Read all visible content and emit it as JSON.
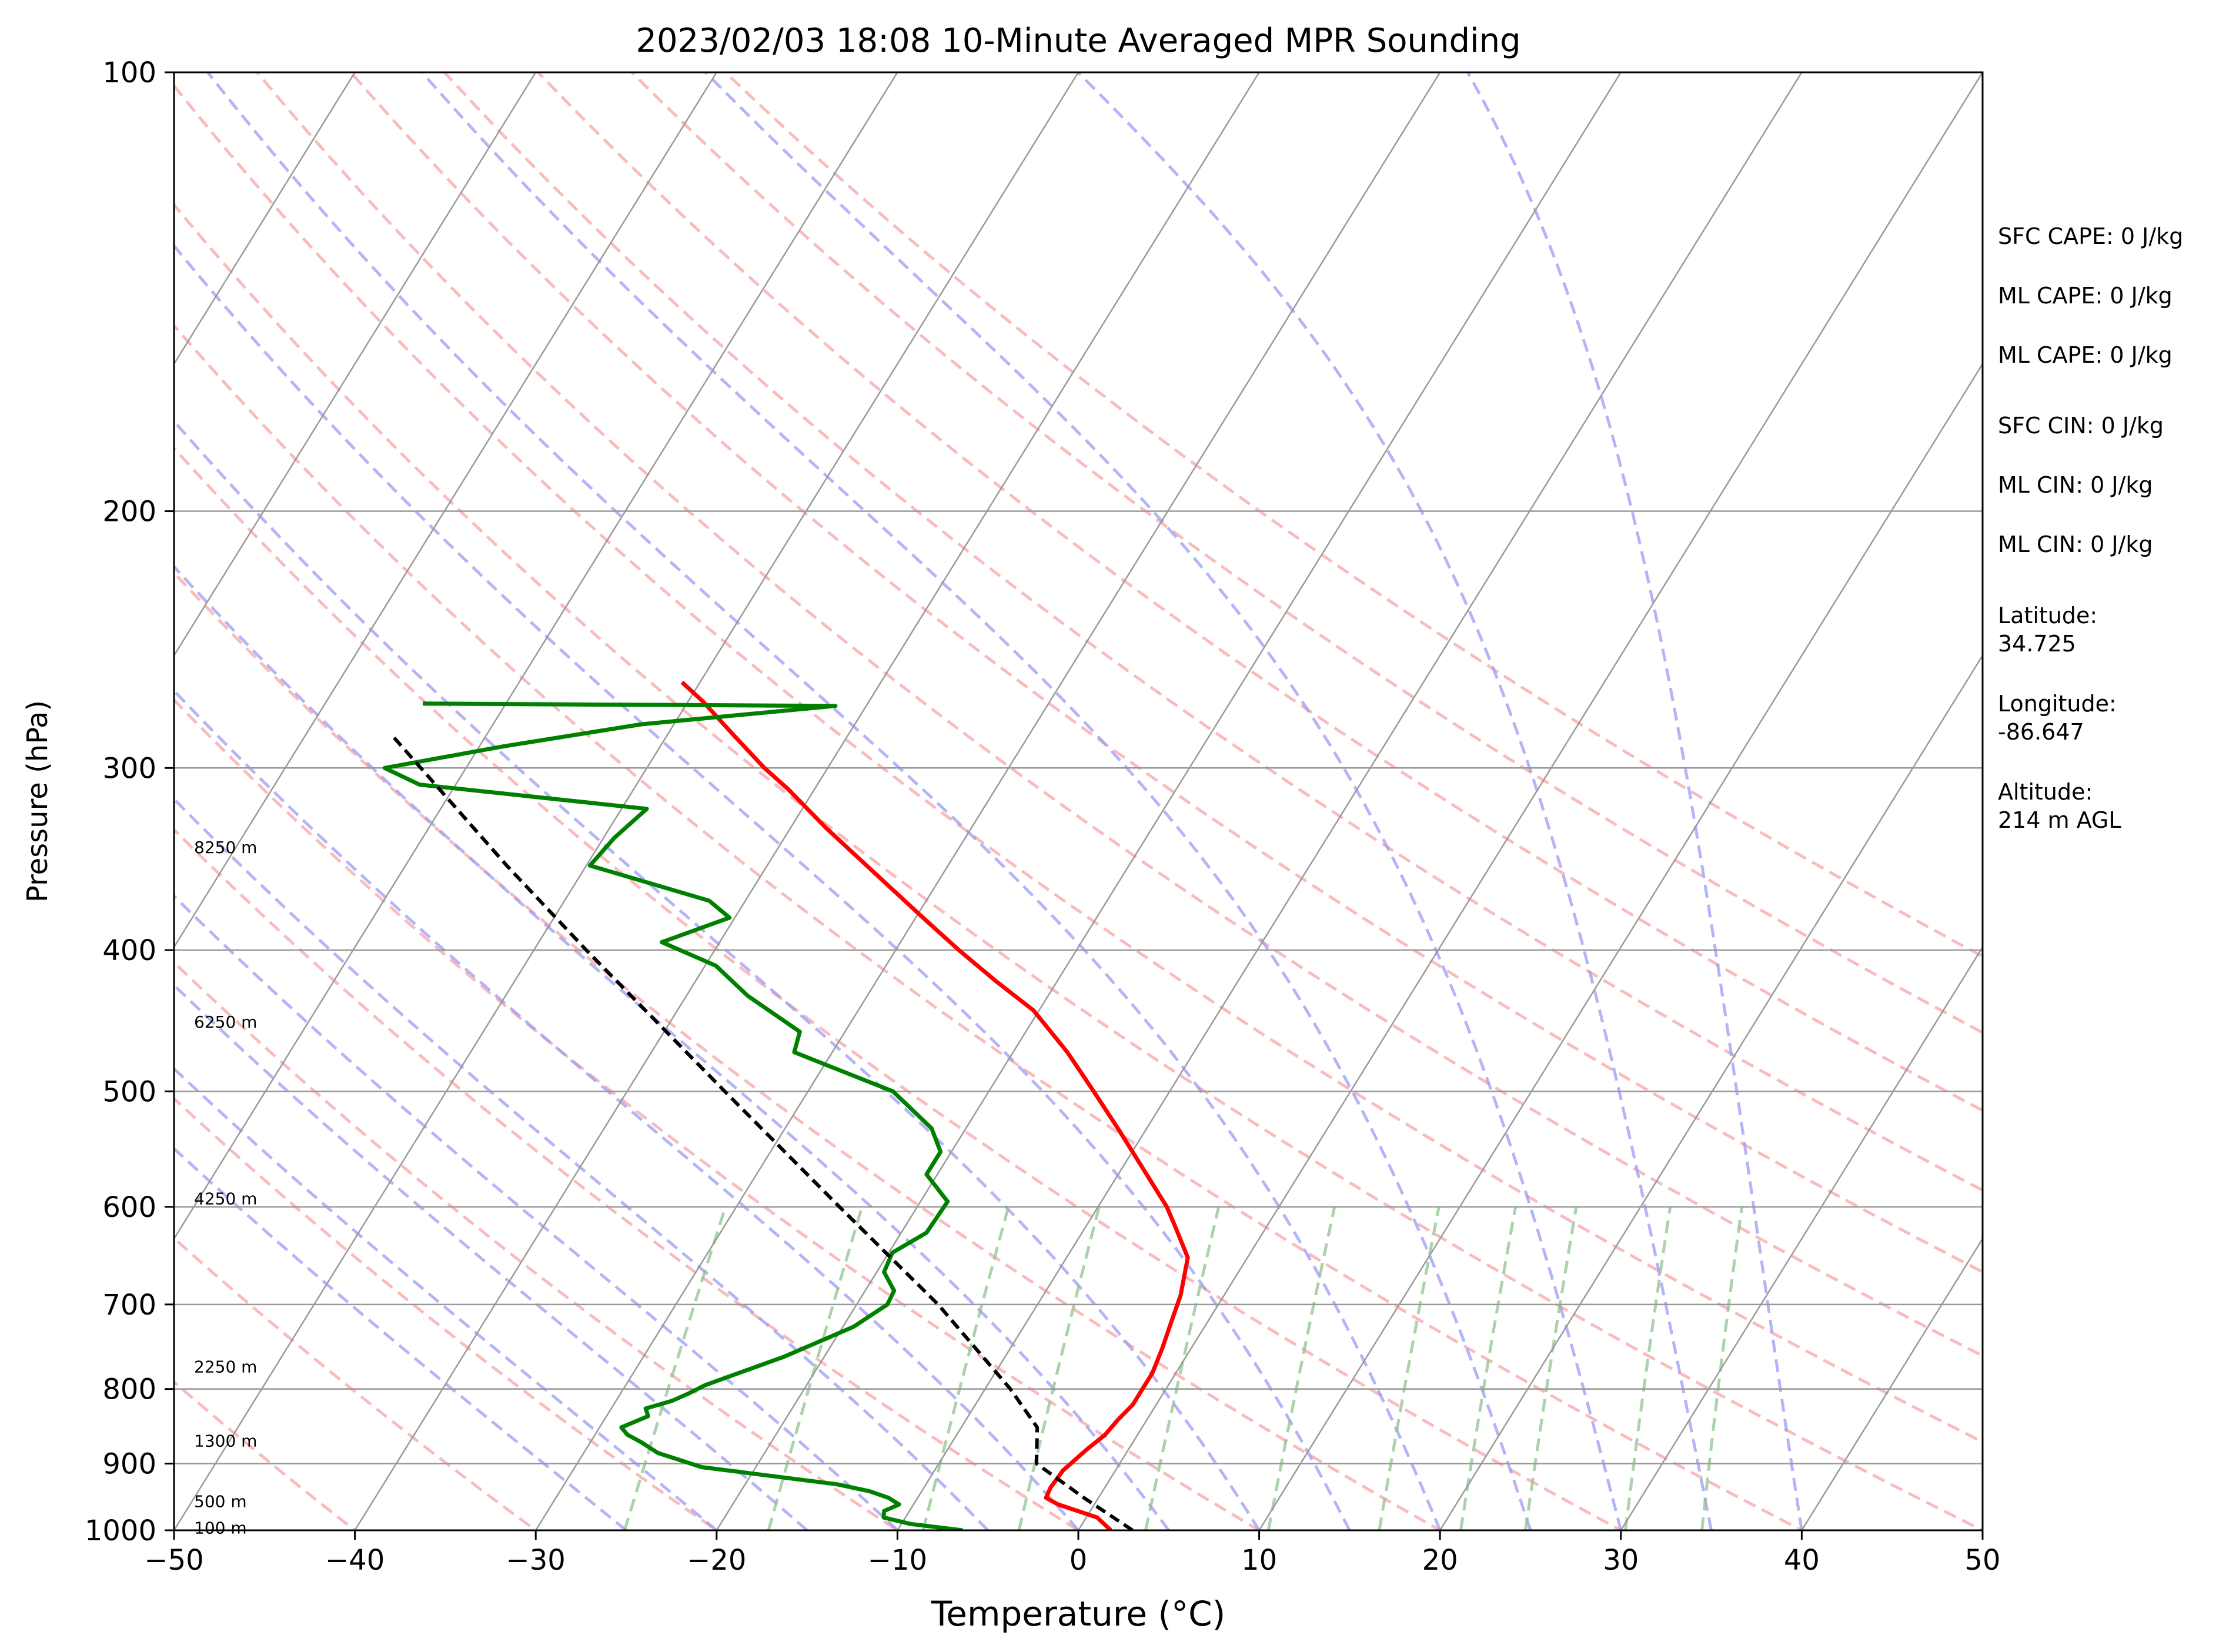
{
  "chart_data": {
    "type": "line",
    "title": "2023/02/03 18:08 10-Minute Averaged MPR Sounding",
    "xlabel": "Temperature (°C)",
    "ylabel": "Pressure (hPa)",
    "xlim": [
      -50,
      50
    ],
    "ylim": [
      1000,
      100
    ],
    "y_scale": "log",
    "skew_t": true,
    "x_ticks": [
      -50,
      -40,
      -30,
      -20,
      -10,
      0,
      10,
      20,
      30,
      40,
      50
    ],
    "x_tick_labels": [
      "−50",
      "−40",
      "−30",
      "−20",
      "−10",
      "0",
      "10",
      "20",
      "30",
      "40",
      "50"
    ],
    "y_ticks": [
      1000,
      900,
      800,
      700,
      600,
      500,
      400,
      300,
      200,
      100
    ],
    "y_tick_labels": [
      "1000",
      "900",
      "800",
      "700",
      "600",
      "500",
      "400",
      "300",
      "200",
      "100"
    ],
    "grid": true,
    "background_lines": {
      "isotherms_c": [
        -120,
        -110,
        -100,
        -90,
        -80,
        -70,
        -60,
        -50,
        -40,
        -30,
        -20,
        -10,
        0,
        10,
        20,
        30,
        40,
        50
      ],
      "dry_adiabats_c": [
        -50,
        -40,
        -30,
        -20,
        -10,
        0,
        10,
        20,
        30,
        40,
        50,
        60,
        70,
        80,
        90,
        100,
        110,
        120
      ],
      "moist_adiabats_c": [
        -25,
        -20,
        -15,
        -10,
        -5,
        0,
        5,
        10,
        15,
        20,
        25,
        30,
        35,
        40
      ],
      "mixing_ratios_gkg": [
        0.5,
        1,
        2,
        3,
        5,
        8,
        12,
        16,
        20,
        28,
        36
      ],
      "colors": {
        "isotherm": "#999999",
        "dry_adiabat": "#f7a4a4",
        "moist_adiabat": "#9b9bf5",
        "mixing_ratio": "#8fc48f"
      }
    },
    "series": [
      {
        "role": "temperature",
        "color": "#ff0000",
        "points": [
          [
            1000,
            1.8
          ],
          [
            980,
            0.6
          ],
          [
            960,
            -2.0
          ],
          [
            950,
            -2.9
          ],
          [
            935,
            -3.0
          ],
          [
            910,
            -2.9
          ],
          [
            880,
            -2.3
          ],
          [
            860,
            -1.8
          ],
          [
            840,
            -1.6
          ],
          [
            820,
            -1.3
          ],
          [
            800,
            -1.3
          ],
          [
            780,
            -1.3
          ],
          [
            750,
            -1.6
          ],
          [
            720,
            -2.0
          ],
          [
            690,
            -2.4
          ],
          [
            650,
            -3.3
          ],
          [
            620,
            -5.0
          ],
          [
            600,
            -6.2
          ],
          [
            560,
            -9.2
          ],
          [
            530,
            -11.6
          ],
          [
            500,
            -14.2
          ],
          [
            470,
            -17.0
          ],
          [
            440,
            -20.3
          ],
          [
            420,
            -23.4
          ],
          [
            400,
            -26.5
          ],
          [
            380,
            -29.6
          ],
          [
            350,
            -34.5
          ],
          [
            330,
            -38.0
          ],
          [
            310,
            -41.5
          ],
          [
            300,
            -43.5
          ],
          [
            285,
            -46.3
          ],
          [
            270,
            -49.2
          ],
          [
            262,
            -51.0
          ]
        ]
      },
      {
        "role": "dewpoint",
        "color": "#008000",
        "points": [
          [
            1000,
            -6.4
          ],
          [
            990,
            -9.5
          ],
          [
            980,
            -11.2
          ],
          [
            970,
            -11.4
          ],
          [
            960,
            -10.8
          ],
          [
            950,
            -11.6
          ],
          [
            940,
            -12.9
          ],
          [
            930,
            -14.9
          ],
          [
            905,
            -23.0
          ],
          [
            885,
            -25.9
          ],
          [
            870,
            -27.2
          ],
          [
            860,
            -28.2
          ],
          [
            850,
            -28.8
          ],
          [
            835,
            -27.7
          ],
          [
            825,
            -28.1
          ],
          [
            815,
            -26.9
          ],
          [
            805,
            -26.2
          ],
          [
            795,
            -25.6
          ],
          [
            760,
            -22.2
          ],
          [
            725,
            -19.4
          ],
          [
            700,
            -18.3
          ],
          [
            685,
            -18.4
          ],
          [
            665,
            -19.6
          ],
          [
            645,
            -19.8
          ],
          [
            625,
            -18.6
          ],
          [
            595,
            -18.5
          ],
          [
            570,
            -20.6
          ],
          [
            550,
            -20.6
          ],
          [
            530,
            -21.9
          ],
          [
            500,
            -25.3
          ],
          [
            470,
            -32.1
          ],
          [
            455,
            -32.5
          ],
          [
            430,
            -36.6
          ],
          [
            410,
            -39.4
          ],
          [
            395,
            -43.2
          ],
          [
            380,
            -40.3
          ],
          [
            370,
            -42.0
          ],
          [
            350,
            -49.8
          ],
          [
            335,
            -49.4
          ],
          [
            320,
            -48.6
          ],
          [
            308,
            -62.0
          ],
          [
            300,
            -64.5
          ],
          [
            290,
            -58.7
          ],
          [
            280,
            -51.8
          ],
          [
            272,
            -41.7
          ],
          [
            271,
            -64.6
          ]
        ]
      },
      {
        "role": "parcel",
        "color": "#000000",
        "dashed": true,
        "points": [
          [
            1000,
            3.0
          ],
          [
            950,
            -0.8
          ],
          [
            900,
            -4.6
          ],
          [
            850,
            -5.8
          ],
          [
            800,
            -8.6
          ],
          [
            700,
            -15.5
          ],
          [
            600,
            -24.3
          ],
          [
            500,
            -34.6
          ],
          [
            400,
            -47.1
          ],
          [
            350,
            -54.4
          ],
          [
            300,
            -62.5
          ],
          [
            285,
            -65.2
          ]
        ]
      }
    ],
    "height_labels": [
      {
        "p": 996,
        "text": "100 m"
      },
      {
        "p": 955,
        "text": "500 m"
      },
      {
        "p": 868,
        "text": "1300 m"
      },
      {
        "p": 772,
        "text": "2250 m"
      },
      {
        "p": 592,
        "text": "4250 m"
      },
      {
        "p": 448,
        "text": "6250 m"
      },
      {
        "p": 340,
        "text": "8250 m"
      }
    ],
    "indices": [
      "SFC CAPE: 0 J/kg",
      "ML CAPE: 0 J/kg",
      "ML CAPE: 0 J/kg",
      "SFC CIN: 0 J/kg",
      "ML CIN: 0 J/kg",
      "ML CIN: 0 J/kg"
    ],
    "site": {
      "latitude_label": "Latitude:",
      "latitude": "34.725",
      "longitude_label": "Longitude:",
      "longitude": "-86.647",
      "altitude_label": "Altitude:",
      "altitude": "214 m AGL"
    }
  }
}
